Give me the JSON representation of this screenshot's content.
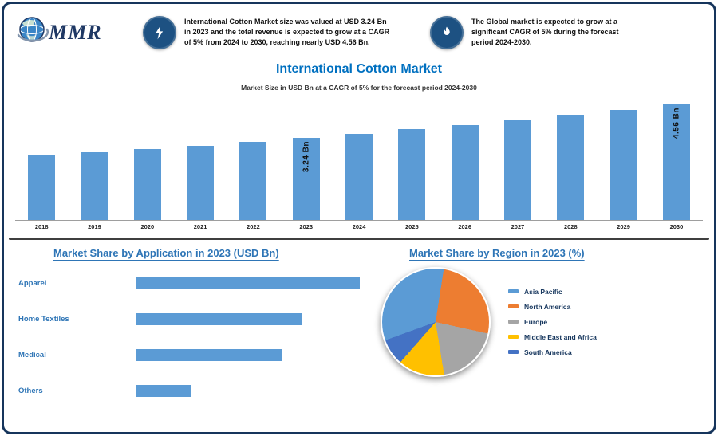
{
  "brand": {
    "logo_text": "MMR"
  },
  "header": {
    "notes": [
      {
        "icon": "lightning-icon",
        "text": "International Cotton Market size was valued at USD 3.24 Bn in 2023 and the total revenue is expected to grow at a CAGR of 5% from 2024 to 2030, reaching nearly USD 4.56 Bn."
      },
      {
        "icon": "flame-icon",
        "text": "The Global market is expected to grow at a significant CAGR of 5% during the forecast period 2024-2030."
      }
    ]
  },
  "title": "International Cotton Market",
  "subtitle": "Market Size in USD Bn at a CAGR of 5% for the forecast period 2024-2030",
  "sections": {
    "left_heading": "Market Share by Application in 2023 (USD Bn)",
    "right_heading": "Market Share by Region in 2023 (%)"
  },
  "colors": {
    "bar_blue": "#5b9bd5",
    "title_blue": "#0070c0",
    "heading_blue": "#2e75b6",
    "frame_navy": "#16355c"
  },
  "chart_data": [
    {
      "type": "bar",
      "title": "International Cotton Market Size (USD Bn)",
      "categories": [
        "2018",
        "2019",
        "2020",
        "2021",
        "2022",
        "2023",
        "2024",
        "2025",
        "2026",
        "2027",
        "2028",
        "2029",
        "2030"
      ],
      "values": [
        2.54,
        2.67,
        2.8,
        2.94,
        3.09,
        3.24,
        3.4,
        3.57,
        3.75,
        3.94,
        4.14,
        4.34,
        4.56
      ],
      "unit": "USD Bn",
      "bar_color": "#5b9bd5",
      "labeled_points": [
        {
          "category": "2023",
          "label": "3.24 Bn"
        },
        {
          "category": "2030",
          "label": "4.56 Bn"
        }
      ],
      "ylim": [
        0,
        4.6
      ],
      "grid": false,
      "legend": "none"
    },
    {
      "type": "bar",
      "orientation": "horizontal",
      "title": "Market Share by Application in 2023 (USD Bn)",
      "categories": [
        "Apparel",
        "Home Textiles",
        "Medical",
        "Others"
      ],
      "values": [
        1.23,
        0.91,
        0.8,
        0.3
      ],
      "unit": "USD Bn",
      "bar_color": "#5b9bd5",
      "xlim": [
        0,
        1.3
      ],
      "grid": false
    },
    {
      "type": "pie",
      "title": "Market Share by Region in 2023 (%)",
      "labels": [
        "Asia Pacific",
        "North America",
        "Europe",
        "Middle East and Africa",
        "South America"
      ],
      "values": [
        33,
        26,
        19,
        14,
        8
      ],
      "colors": [
        "#5b9bd5",
        "#ed7d31",
        "#a5a5a5",
        "#ffc000",
        "#4472c4"
      ],
      "start_angle_deg": -110,
      "legend_position": "right"
    }
  ]
}
